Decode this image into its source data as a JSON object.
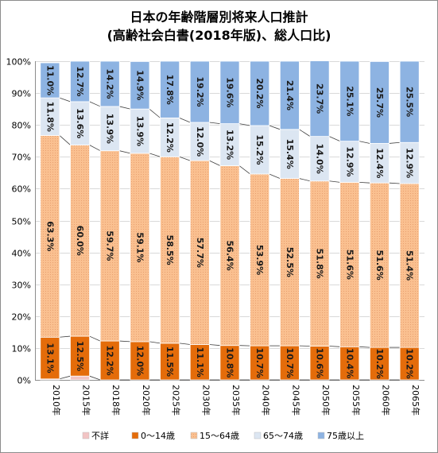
{
  "chart_data": {
    "type": "bar",
    "stacked": "100%",
    "title": "日本の年齢階層別将来人口推計",
    "subtitle": "(高齢社会白書(2018年版)、総人口比)",
    "categories": [
      "2010年",
      "2015年",
      "2018年",
      "2020年",
      "2025年",
      "2030年",
      "2035年",
      "2040年",
      "2045年",
      "2050年",
      "2055年",
      "2060年",
      "2065年"
    ],
    "ylim": [
      0,
      100
    ],
    "yticks": [
      "0%",
      "10%",
      "20%",
      "30%",
      "40%",
      "50%",
      "60%",
      "70%",
      "80%",
      "90%",
      "100%"
    ],
    "grid": true,
    "legend_position": "bottom",
    "series": [
      {
        "name": "不詳",
        "color": "#f2c4c4",
        "values": [
          0.3,
          1.2,
          0,
          0,
          0,
          0,
          0,
          0,
          0,
          0,
          0,
          0,
          0
        ],
        "labels": [
          "",
          "",
          "",
          "",
          "",
          "",
          "",
          "",
          "",
          "",
          "",
          "",
          ""
        ]
      },
      {
        "name": "0～14歳",
        "color": "#e46c0a",
        "values": [
          13.1,
          12.5,
          12.2,
          12.0,
          11.5,
          11.1,
          10.8,
          10.7,
          10.7,
          10.6,
          10.4,
          10.2,
          10.2
        ],
        "labels": [
          "13.1%",
          "12.5%",
          "12.2%",
          "12.0%",
          "11.5%",
          "11.1%",
          "10.8%",
          "10.7%",
          "10.7%",
          "10.6%",
          "10.4%",
          "10.2%",
          "10.2%"
        ]
      },
      {
        "name": "15～64歳",
        "color": "#fac090",
        "values": [
          63.3,
          60.0,
          59.7,
          59.1,
          58.5,
          57.7,
          56.4,
          53.9,
          52.5,
          51.8,
          51.6,
          51.6,
          51.4
        ],
        "labels": [
          "63.3%",
          "60.0%",
          "59.7%",
          "59.1%",
          "58.5%",
          "57.7%",
          "56.4%",
          "53.9%",
          "52.5%",
          "51.8%",
          "51.6%",
          "51.6%",
          "51.4%"
        ]
      },
      {
        "name": "65～74歳",
        "color": "#dce6f2",
        "values": [
          11.8,
          13.6,
          13.9,
          13.9,
          12.2,
          12.0,
          13.2,
          15.2,
          15.4,
          14.0,
          12.9,
          12.4,
          12.9
        ],
        "labels": [
          "11.8%",
          "13.6%",
          "13.9%",
          "13.9%",
          "12.2%",
          "12.0%",
          "13.2%",
          "15.2%",
          "15.4%",
          "14.0%",
          "12.9%",
          "12.4%",
          "12.9%"
        ]
      },
      {
        "name": "75歳以上",
        "color": "#8db3e2",
        "values": [
          11.0,
          12.7,
          14.2,
          14.9,
          17.8,
          19.2,
          19.6,
          20.2,
          21.4,
          23.7,
          25.1,
          25.7,
          25.5
        ],
        "labels": [
          "11.0%",
          "12.7%",
          "14.2%",
          "14.9%",
          "17.8%",
          "19.2%",
          "19.6%",
          "20.2%",
          "21.4%",
          "23.7%",
          "25.1%",
          "25.7%",
          "25.5%"
        ]
      }
    ]
  }
}
